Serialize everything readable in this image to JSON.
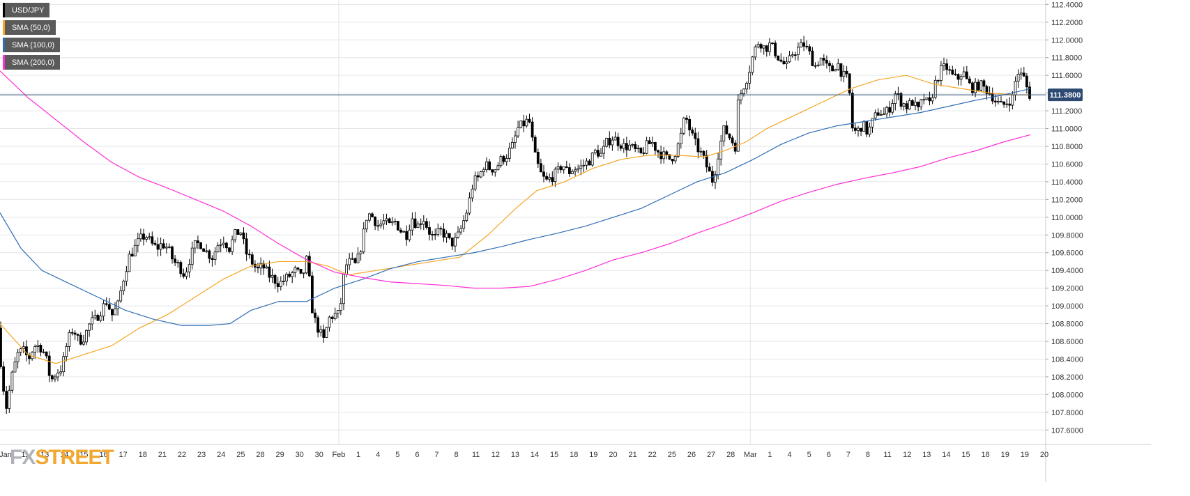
{
  "chart_data": {
    "type": "candlestick",
    "symbol": "USD/JPY",
    "timeframe_note": "2-hour candles",
    "ylim": [
      107.5,
      112.45
    ],
    "y_ticks": [
      "107.6000",
      "107.8000",
      "108.0000",
      "108.2000",
      "108.4000",
      "108.6000",
      "108.8000",
      "109.0000",
      "109.2000",
      "109.4000",
      "109.6000",
      "109.8000",
      "110.0000",
      "110.2000",
      "110.4000",
      "110.6000",
      "110.8000",
      "111.0000",
      "111.2000",
      "111.4000",
      "111.6000",
      "111.8000",
      "112.0000",
      "112.2000",
      "112.4000"
    ],
    "x_labels": [
      "Jan",
      "11",
      "13",
      "14",
      "15",
      "16",
      "17",
      "18",
      "21",
      "22",
      "23",
      "24",
      "25",
      "28",
      "29",
      "30",
      "30",
      "Feb",
      "1",
      "4",
      "5",
      "6",
      "7",
      "8",
      "11",
      "12",
      "13",
      "14",
      "15",
      "18",
      "19",
      "20",
      "21",
      "22",
      "25",
      "26",
      "27",
      "28",
      "Mar",
      "1",
      "4",
      "5",
      "6",
      "7",
      "8",
      "11",
      "12",
      "13",
      "14",
      "15",
      "18",
      "19",
      "19",
      "20"
    ],
    "current_price": 111.38,
    "current_price_label": "111.3800",
    "grid": true,
    "legend_position": "top-left",
    "series": [
      {
        "name": "USD/JPY",
        "color": "#000000"
      },
      {
        "name": "SMA (50,0)",
        "color": "#f5a623"
      },
      {
        "name": "SMA (100,0)",
        "color": "#2f6db5"
      },
      {
        "name": "SMA (200,0)",
        "color": "#ff2dd4"
      }
    ],
    "price_path": [
      [
        0,
        108.75
      ],
      [
        6,
        108.2
      ],
      [
        12,
        107.85
      ],
      [
        20,
        108.2
      ],
      [
        28,
        108.45
      ],
      [
        36,
        108.5
      ],
      [
        44,
        108.4
      ],
      [
        52,
        108.55
      ],
      [
        60,
        108.55
      ],
      [
        68,
        108.45
      ],
      [
        76,
        108.15
      ],
      [
        84,
        108.25
      ],
      [
        92,
        108.3
      ],
      [
        100,
        108.6
      ],
      [
        108,
        108.75
      ],
      [
        116,
        108.6
      ],
      [
        124,
        108.65
      ],
      [
        132,
        108.8
      ],
      [
        140,
        108.85
      ],
      [
        148,
        108.95
      ],
      [
        156,
        109.05
      ],
      [
        164,
        108.9
      ],
      [
        172,
        109.0
      ],
      [
        180,
        109.3
      ],
      [
        188,
        109.55
      ],
      [
        196,
        109.65
      ],
      [
        204,
        109.75
      ],
      [
        212,
        109.8
      ],
      [
        220,
        109.7
      ],
      [
        228,
        109.65
      ],
      [
        236,
        109.7
      ],
      [
        244,
        109.65
      ],
      [
        252,
        109.5
      ],
      [
        260,
        109.45
      ],
      [
        268,
        109.35
      ],
      [
        276,
        109.55
      ],
      [
        284,
        109.7
      ],
      [
        292,
        109.7
      ],
      [
        300,
        109.6
      ],
      [
        308,
        109.55
      ],
      [
        316,
        109.7
      ],
      [
        324,
        109.75
      ],
      [
        332,
        109.65
      ],
      [
        340,
        109.8
      ],
      [
        348,
        109.85
      ],
      [
        356,
        109.6
      ],
      [
        364,
        109.5
      ],
      [
        372,
        109.4
      ],
      [
        380,
        109.45
      ],
      [
        388,
        109.35
      ],
      [
        396,
        109.3
      ],
      [
        404,
        109.25
      ],
      [
        412,
        109.3
      ],
      [
        420,
        109.35
      ],
      [
        428,
        109.4
      ],
      [
        436,
        109.3
      ],
      [
        444,
        109.55
      ],
      [
        450,
        109.0
      ],
      [
        456,
        108.8
      ],
      [
        462,
        108.7
      ],
      [
        468,
        108.6
      ],
      [
        474,
        108.85
      ],
      [
        482,
        108.9
      ],
      [
        490,
        108.9
      ],
      [
        498,
        109.45
      ],
      [
        506,
        109.5
      ],
      [
        514,
        109.45
      ],
      [
        522,
        109.7
      ],
      [
        530,
        110.05
      ],
      [
        538,
        110.0
      ],
      [
        546,
        109.9
      ],
      [
        554,
        109.95
      ],
      [
        562,
        109.9
      ],
      [
        570,
        109.95
      ],
      [
        578,
        109.85
      ],
      [
        586,
        109.8
      ],
      [
        594,
        110.0
      ],
      [
        602,
        109.9
      ],
      [
        610,
        110.0
      ],
      [
        618,
        109.85
      ],
      [
        626,
        109.75
      ],
      [
        634,
        109.85
      ],
      [
        642,
        109.8
      ],
      [
        650,
        109.7
      ],
      [
        658,
        109.75
      ],
      [
        666,
        109.9
      ],
      [
        674,
        110.1
      ],
      [
        682,
        110.4
      ],
      [
        690,
        110.45
      ],
      [
        698,
        110.6
      ],
      [
        706,
        110.55
      ],
      [
        714,
        110.55
      ],
      [
        722,
        110.65
      ],
      [
        730,
        110.7
      ],
      [
        738,
        110.8
      ],
      [
        746,
        111.0
      ],
      [
        754,
        111.05
      ],
      [
        762,
        111.1
      ],
      [
        770,
        110.7
      ],
      [
        778,
        110.5
      ],
      [
        786,
        110.4
      ],
      [
        794,
        110.45
      ],
      [
        802,
        110.5
      ],
      [
        810,
        110.6
      ],
      [
        818,
        110.5
      ],
      [
        826,
        110.55
      ],
      [
        834,
        110.55
      ],
      [
        842,
        110.6
      ],
      [
        850,
        110.65
      ],
      [
        858,
        110.75
      ],
      [
        866,
        110.7
      ],
      [
        874,
        110.85
      ],
      [
        882,
        110.9
      ],
      [
        890,
        110.85
      ],
      [
        898,
        110.8
      ],
      [
        906,
        110.8
      ],
      [
        914,
        110.75
      ],
      [
        922,
        110.7
      ],
      [
        930,
        110.8
      ],
      [
        938,
        110.85
      ],
      [
        946,
        110.75
      ],
      [
        954,
        110.7
      ],
      [
        962,
        110.65
      ],
      [
        970,
        110.7
      ],
      [
        978,
        110.85
      ],
      [
        986,
        111.15
      ],
      [
        994,
        110.95
      ],
      [
        1002,
        110.8
      ],
      [
        1010,
        110.7
      ],
      [
        1018,
        110.55
      ],
      [
        1026,
        110.4
      ],
      [
        1034,
        110.75
      ],
      [
        1042,
        111.0
      ],
      [
        1050,
        110.9
      ],
      [
        1058,
        110.8
      ],
      [
        1062,
        111.3
      ],
      [
        1068,
        111.45
      ],
      [
        1076,
        111.6
      ],
      [
        1084,
        111.85
      ],
      [
        1092,
        112.0
      ],
      [
        1100,
        111.9
      ],
      [
        1108,
        111.95
      ],
      [
        1116,
        111.85
      ],
      [
        1124,
        111.75
      ],
      [
        1132,
        111.7
      ],
      [
        1140,
        111.85
      ],
      [
        1148,
        111.9
      ],
      [
        1156,
        111.95
      ],
      [
        1164,
        111.85
      ],
      [
        1172,
        111.7
      ],
      [
        1180,
        111.8
      ],
      [
        1188,
        111.7
      ],
      [
        1196,
        111.65
      ],
      [
        1204,
        111.75
      ],
      [
        1212,
        111.6
      ],
      [
        1220,
        111.55
      ],
      [
        1226,
        111.0
      ],
      [
        1232,
        110.95
      ],
      [
        1240,
        111.05
      ],
      [
        1248,
        110.95
      ],
      [
        1256,
        111.1
      ],
      [
        1264,
        111.2
      ],
      [
        1272,
        111.15
      ],
      [
        1280,
        111.25
      ],
      [
        1288,
        111.4
      ],
      [
        1296,
        111.3
      ],
      [
        1304,
        111.25
      ],
      [
        1312,
        111.3
      ],
      [
        1320,
        111.2
      ],
      [
        1328,
        111.35
      ],
      [
        1336,
        111.25
      ],
      [
        1344,
        111.5
      ],
      [
        1352,
        111.65
      ],
      [
        1360,
        111.7
      ],
      [
        1368,
        111.6
      ],
      [
        1376,
        111.55
      ],
      [
        1384,
        111.65
      ],
      [
        1392,
        111.5
      ],
      [
        1400,
        111.45
      ],
      [
        1408,
        111.5
      ],
      [
        1416,
        111.45
      ],
      [
        1424,
        111.4
      ],
      [
        1432,
        111.3
      ],
      [
        1440,
        111.25
      ],
      [
        1448,
        111.3
      ],
      [
        1456,
        111.35
      ],
      [
        1462,
        111.65
      ],
      [
        1468,
        111.6
      ],
      [
        1474,
        111.55
      ],
      [
        1478,
        111.38
      ]
    ],
    "sma50_path": [
      [
        0,
        108.8
      ],
      [
        40,
        108.45
      ],
      [
        80,
        108.35
      ],
      [
        120,
        108.45
      ],
      [
        160,
        108.55
      ],
      [
        200,
        108.75
      ],
      [
        240,
        108.9
      ],
      [
        280,
        109.1
      ],
      [
        320,
        109.3
      ],
      [
        360,
        109.45
      ],
      [
        400,
        109.5
      ],
      [
        440,
        109.5
      ],
      [
        470,
        109.45
      ],
      [
        500,
        109.35
      ],
      [
        540,
        109.4
      ],
      [
        580,
        109.45
      ],
      [
        620,
        109.5
      ],
      [
        660,
        109.55
      ],
      [
        700,
        109.8
      ],
      [
        740,
        110.1
      ],
      [
        770,
        110.3
      ],
      [
        810,
        110.4
      ],
      [
        850,
        110.55
      ],
      [
        890,
        110.65
      ],
      [
        930,
        110.7
      ],
      [
        970,
        110.7
      ],
      [
        1010,
        110.68
      ],
      [
        1040,
        110.75
      ],
      [
        1070,
        110.85
      ],
      [
        1100,
        111.0
      ],
      [
        1140,
        111.15
      ],
      [
        1180,
        111.3
      ],
      [
        1220,
        111.45
      ],
      [
        1260,
        111.55
      ],
      [
        1300,
        111.6
      ],
      [
        1340,
        111.5
      ],
      [
        1380,
        111.45
      ],
      [
        1420,
        111.4
      ],
      [
        1460,
        111.38
      ],
      [
        1478,
        111.38
      ]
    ],
    "sma100_path": [
      [
        0,
        110.05
      ],
      [
        30,
        109.65
      ],
      [
        60,
        109.4
      ],
      [
        100,
        109.25
      ],
      [
        140,
        109.1
      ],
      [
        180,
        108.95
      ],
      [
        220,
        108.85
      ],
      [
        260,
        108.78
      ],
      [
        300,
        108.78
      ],
      [
        330,
        108.8
      ],
      [
        360,
        108.95
      ],
      [
        400,
        109.05
      ],
      [
        440,
        109.05
      ],
      [
        480,
        109.2
      ],
      [
        520,
        109.3
      ],
      [
        560,
        109.42
      ],
      [
        600,
        109.5
      ],
      [
        640,
        109.55
      ],
      [
        680,
        109.6
      ],
      [
        720,
        109.67
      ],
      [
        760,
        109.75
      ],
      [
        800,
        109.82
      ],
      [
        840,
        109.9
      ],
      [
        880,
        110.0
      ],
      [
        920,
        110.1
      ],
      [
        960,
        110.25
      ],
      [
        1000,
        110.4
      ],
      [
        1040,
        110.5
      ],
      [
        1080,
        110.65
      ],
      [
        1120,
        110.82
      ],
      [
        1160,
        110.95
      ],
      [
        1200,
        111.03
      ],
      [
        1240,
        111.08
      ],
      [
        1280,
        111.13
      ],
      [
        1320,
        111.18
      ],
      [
        1360,
        111.25
      ],
      [
        1400,
        111.32
      ],
      [
        1440,
        111.38
      ],
      [
        1478,
        111.45
      ]
    ],
    "sma200_path": [
      [
        0,
        111.65
      ],
      [
        40,
        111.35
      ],
      [
        80,
        111.1
      ],
      [
        120,
        110.85
      ],
      [
        160,
        110.62
      ],
      [
        200,
        110.45
      ],
      [
        240,
        110.33
      ],
      [
        280,
        110.2
      ],
      [
        320,
        110.07
      ],
      [
        360,
        109.9
      ],
      [
        400,
        109.7
      ],
      [
        440,
        109.52
      ],
      [
        480,
        109.38
      ],
      [
        520,
        109.32
      ],
      [
        560,
        109.27
      ],
      [
        600,
        109.25
      ],
      [
        640,
        109.23
      ],
      [
        680,
        109.2
      ],
      [
        720,
        109.2
      ],
      [
        760,
        109.22
      ],
      [
        800,
        109.3
      ],
      [
        840,
        109.4
      ],
      [
        880,
        109.52
      ],
      [
        920,
        109.6
      ],
      [
        960,
        109.7
      ],
      [
        1000,
        109.82
      ],
      [
        1040,
        109.93
      ],
      [
        1080,
        110.05
      ],
      [
        1120,
        110.18
      ],
      [
        1160,
        110.28
      ],
      [
        1200,
        110.37
      ],
      [
        1240,
        110.44
      ],
      [
        1280,
        110.5
      ],
      [
        1320,
        110.57
      ],
      [
        1360,
        110.67
      ],
      [
        1400,
        110.75
      ],
      [
        1440,
        110.85
      ],
      [
        1478,
        110.93
      ]
    ]
  },
  "legend": {
    "items": [
      {
        "label": "USD/JPY",
        "color": "#000000"
      },
      {
        "label": "SMA (50,0)",
        "color": "#f5a623"
      },
      {
        "label": "SMA (100,0)",
        "color": "#2f6db5"
      },
      {
        "label": "SMA (200,0)",
        "color": "#ff2dd4"
      }
    ]
  },
  "watermark": {
    "fx": "FX",
    "street": "STREET"
  },
  "colors": {
    "background": "#ffffff",
    "grid": "#e3e6ea",
    "price_line": "#2e4a73",
    "price_badge": "#2e4a73"
  }
}
